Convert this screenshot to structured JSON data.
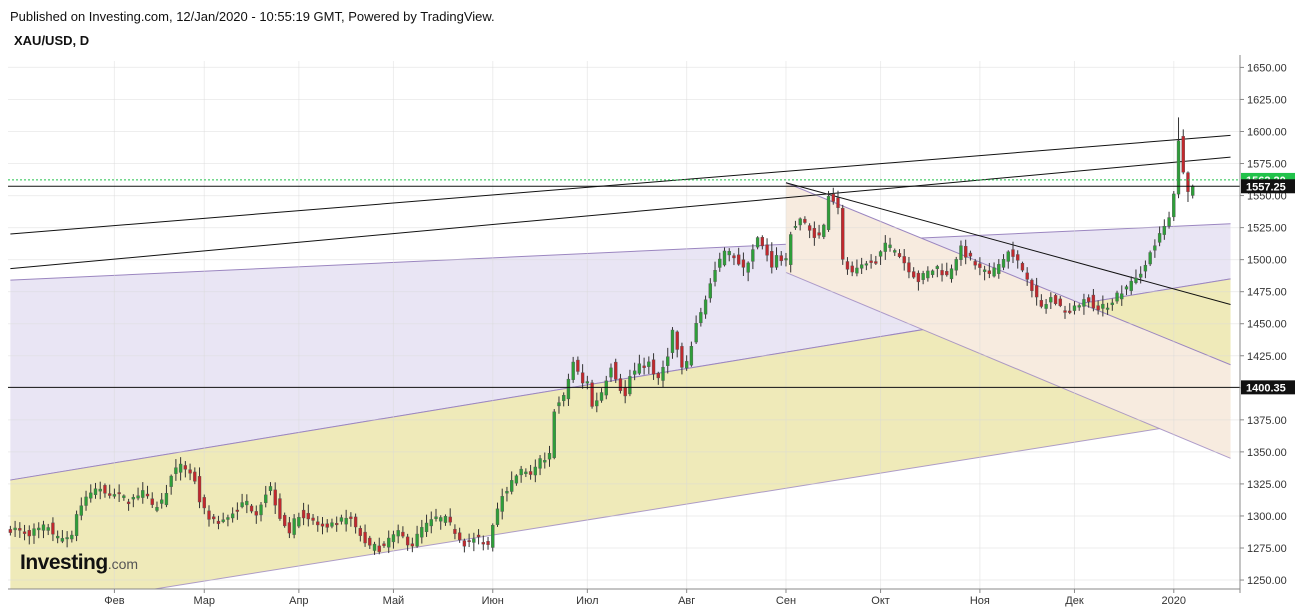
{
  "header": {
    "published": "Published on Investing.com, 12/Jan/2020 - 10:55:19 GMT, Powered by TradingView.",
    "symbol": "XAU/USD, D"
  },
  "logo": {
    "brand": "Investing",
    "suffix": ".com"
  },
  "colors": {
    "up": "#2e9e39",
    "down": "#c0282d",
    "wick": "#333333",
    "lavender": "#e9e5f4",
    "yellow": "#efeab9",
    "peach": "#f7ebdf",
    "lavender_line": "#9b86c0",
    "current_green": "#21c24a",
    "current_black": "#111111"
  },
  "chart_data": {
    "type": "candlestick",
    "title": "XAU/USD, D",
    "ylim": [
      1243,
      1655
    ],
    "y_ticks": [
      "1650.00",
      "1625.00",
      "1600.00",
      "1575.00",
      "1550.00",
      "1525.00",
      "1500.00",
      "1475.00",
      "1450.00",
      "1425.00",
      "1400.00",
      "1375.00",
      "1350.00",
      "1325.00",
      "1300.00",
      "1275.00",
      "1250.00"
    ],
    "x_ticks": [
      {
        "label": "Фев",
        "day": 22
      },
      {
        "label": "Мар",
        "day": 41
      },
      {
        "label": "Апр",
        "day": 61
      },
      {
        "label": "Май",
        "day": 81
      },
      {
        "label": "Июн",
        "day": 102
      },
      {
        "label": "Июл",
        "day": 122
      },
      {
        "label": "Авг",
        "day": 143
      },
      {
        "label": "Сен",
        "day": 164
      },
      {
        "label": "Окт",
        "day": 184
      },
      {
        "label": "Ноя",
        "day": 205
      },
      {
        "label": "Дек",
        "day": 225
      },
      {
        "label": "2020",
        "day": 246
      }
    ],
    "price_labels": [
      {
        "value": 1562.2,
        "text": "1562.20",
        "style": "green"
      },
      {
        "value": 1557.25,
        "text": "1557.25",
        "style": "black"
      },
      {
        "value": 1400.35,
        "text": "1400.35",
        "style": "black"
      }
    ],
    "horizontal_lines": [
      1562.2,
      1557.25,
      1400.35
    ],
    "trend_lines": [
      {
        "p1": [
          0,
          1520
        ],
        "p2": [
          258,
          1597
        ]
      },
      {
        "p1": [
          0,
          1493
        ],
        "p2": [
          258,
          1580
        ]
      },
      {
        "p1": [
          164,
          1560
        ],
        "p2": [
          258,
          1465
        ]
      }
    ],
    "channels": [
      {
        "fill": "lavender",
        "upper": [
          [
            0,
            1484
          ],
          [
            258,
            1528
          ]
        ],
        "lower": [
          [
            0,
            1328
          ],
          [
            258,
            1485
          ]
        ]
      },
      {
        "fill": "yellow",
        "upper": [
          [
            0,
            1328
          ],
          [
            258,
            1485
          ]
        ],
        "lower": [
          [
            0,
            1225
          ],
          [
            258,
            1377
          ]
        ]
      },
      {
        "fill": "peach",
        "upper": [
          [
            164,
            1560
          ],
          [
            258,
            1418
          ]
        ],
        "lower": [
          [
            164,
            1490
          ],
          [
            258,
            1345
          ]
        ]
      }
    ],
    "anchors": [
      [
        0,
        1290
      ],
      [
        4,
        1287
      ],
      [
        8,
        1292
      ],
      [
        10,
        1282
      ],
      [
        13,
        1285
      ],
      [
        14,
        1302
      ],
      [
        17,
        1318
      ],
      [
        19,
        1322
      ],
      [
        22,
        1316
      ],
      [
        25,
        1312
      ],
      [
        28,
        1320
      ],
      [
        30,
        1306
      ],
      [
        32,
        1311
      ],
      [
        34,
        1330
      ],
      [
        36,
        1341
      ],
      [
        38,
        1333
      ],
      [
        39,
        1328
      ],
      [
        40,
        1312
      ],
      [
        41,
        1304
      ],
      [
        43,
        1295
      ],
      [
        45,
        1297
      ],
      [
        48,
        1306
      ],
      [
        50,
        1310
      ],
      [
        52,
        1303
      ],
      [
        54,
        1318
      ],
      [
        55,
        1322
      ],
      [
        57,
        1300
      ],
      [
        59,
        1288
      ],
      [
        60,
        1295
      ],
      [
        61,
        1302
      ],
      [
        63,
        1298
      ],
      [
        65,
        1293
      ],
      [
        67,
        1289
      ],
      [
        68,
        1292
      ],
      [
        70,
        1296
      ],
      [
        72,
        1297
      ],
      [
        74,
        1285
      ],
      [
        76,
        1276
      ],
      [
        78,
        1275
      ],
      [
        80,
        1282
      ],
      [
        82,
        1286
      ],
      [
        84,
        1280
      ],
      [
        85,
        1278
      ],
      [
        87,
        1290
      ],
      [
        90,
        1298
      ],
      [
        92,
        1297
      ],
      [
        94,
        1288
      ],
      [
        96,
        1279
      ],
      [
        99,
        1282
      ],
      [
        101,
        1278
      ],
      [
        102,
        1295
      ],
      [
        104,
        1318
      ],
      [
        106,
        1326
      ],
      [
        108,
        1335
      ],
      [
        110,
        1330
      ],
      [
        112,
        1342
      ],
      [
        114,
        1347
      ],
      [
        115,
        1384
      ],
      [
        117,
        1392
      ],
      [
        118,
        1407
      ],
      [
        119,
        1420
      ],
      [
        121,
        1403
      ],
      [
        122,
        1406
      ],
      [
        123,
        1385
      ],
      [
        125,
        1397
      ],
      [
        127,
        1418
      ],
      [
        129,
        1400
      ],
      [
        130,
        1393
      ],
      [
        131,
        1409
      ],
      [
        133,
        1416
      ],
      [
        135,
        1420
      ],
      [
        137,
        1405
      ],
      [
        139,
        1427
      ],
      [
        140,
        1444
      ],
      [
        142,
        1415
      ],
      [
        143,
        1418
      ],
      [
        145,
        1450
      ],
      [
        147,
        1470
      ],
      [
        149,
        1491
      ],
      [
        151,
        1506
      ],
      [
        153,
        1503
      ],
      [
        155,
        1492
      ],
      [
        158,
        1516
      ],
      [
        160,
        1504
      ],
      [
        161,
        1496
      ],
      [
        162,
        1502
      ],
      [
        164,
        1498
      ],
      [
        165,
        1522
      ],
      [
        167,
        1532
      ],
      [
        169,
        1522
      ],
      [
        171,
        1518
      ],
      [
        172,
        1526
      ],
      [
        173,
        1552
      ],
      [
        175,
        1542
      ],
      [
        176,
        1498
      ],
      [
        178,
        1488
      ],
      [
        181,
        1496
      ],
      [
        183,
        1500
      ],
      [
        185,
        1512
      ],
      [
        188,
        1503
      ],
      [
        190,
        1493
      ],
      [
        192,
        1484
      ],
      [
        194,
        1490
      ],
      [
        196,
        1494
      ],
      [
        198,
        1487
      ],
      [
        200,
        1502
      ],
      [
        201,
        1508
      ],
      [
        203,
        1500
      ],
      [
        205,
        1492
      ],
      [
        207,
        1488
      ],
      [
        209,
        1496
      ],
      [
        211,
        1506
      ],
      [
        213,
        1498
      ],
      [
        215,
        1487
      ],
      [
        217,
        1468
      ],
      [
        218,
        1462
      ],
      [
        220,
        1470
      ],
      [
        222,
        1463
      ],
      [
        224,
        1458
      ],
      [
        226,
        1466
      ],
      [
        228,
        1470
      ],
      [
        230,
        1460
      ],
      [
        232,
        1465
      ],
      [
        234,
        1472
      ],
      [
        236,
        1478
      ],
      [
        238,
        1484
      ],
      [
        240,
        1498
      ],
      [
        243,
        1518
      ],
      [
        245,
        1532
      ],
      [
        246,
        1549
      ],
      [
        247,
        1595
      ],
      [
        248,
        1566
      ],
      [
        249,
        1552
      ],
      [
        250,
        1558
      ]
    ]
  }
}
